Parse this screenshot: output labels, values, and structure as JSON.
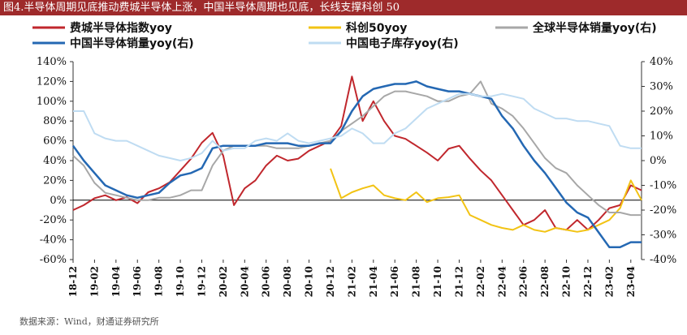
{
  "figure": {
    "title": "图4.半导体周期见底推动费城半导体上涨，中国半导体周期也见底，长线支撑科创 50",
    "source": "数据来源：Wind，财通证券研究所"
  },
  "chart_data": {
    "type": "line",
    "x_ticks": [
      "18-12",
      "19-02",
      "19-04",
      "19-06",
      "19-08",
      "19-10",
      "19-12",
      "20-02",
      "20-04",
      "20-06",
      "20-08",
      "20-10",
      "20-12",
      "21-02",
      "21-04",
      "21-06",
      "21-08",
      "21-10",
      "21-12",
      "22-02",
      "22-04",
      "22-06",
      "22-08",
      "22-10",
      "22-12",
      "23-02",
      "23-04"
    ],
    "x_range": [
      "2018-12",
      "2023-05"
    ],
    "y_left": {
      "min": -60,
      "max": 140,
      "ticks": [
        "140%",
        "120%",
        "100%",
        "80%",
        "60%",
        "40%",
        "20%",
        "0%",
        "-20%",
        "-40%",
        "-60%"
      ]
    },
    "y_right": {
      "min": -40,
      "max": 40,
      "ticks": [
        "40%",
        "30%",
        "20%",
        "10%",
        "0%",
        "-10%",
        "-20%",
        "-30%",
        "-40%"
      ]
    },
    "legend": {
      "position": "top"
    },
    "series": [
      {
        "name": "费城半导体指数yoy",
        "axis": "left",
        "color": "#c0272d",
        "width": 2,
        "points": [
          [
            "2018-12",
            -10
          ],
          [
            "2019-01",
            -5
          ],
          [
            "2019-02",
            2
          ],
          [
            "2019-03",
            5
          ],
          [
            "2019-04",
            0
          ],
          [
            "2019-05",
            3
          ],
          [
            "2019-06",
            -3
          ],
          [
            "2019-07",
            8
          ],
          [
            "2019-08",
            12
          ],
          [
            "2019-09",
            18
          ],
          [
            "2019-10",
            30
          ],
          [
            "2019-11",
            42
          ],
          [
            "2019-12",
            58
          ],
          [
            "2020-01",
            68
          ],
          [
            "2020-02",
            45
          ],
          [
            "2020-03",
            -5
          ],
          [
            "2020-04",
            12
          ],
          [
            "2020-05",
            20
          ],
          [
            "2020-06",
            35
          ],
          [
            "2020-07",
            45
          ],
          [
            "2020-08",
            40
          ],
          [
            "2020-09",
            42
          ],
          [
            "2020-10",
            50
          ],
          [
            "2020-11",
            55
          ],
          [
            "2020-12",
            60
          ],
          [
            "2021-01",
            75
          ],
          [
            "2021-02",
            125
          ],
          [
            "2021-03",
            80
          ],
          [
            "2021-04",
            100
          ],
          [
            "2021-05",
            80
          ],
          [
            "2021-06",
            65
          ],
          [
            "2021-07",
            62
          ],
          [
            "2021-08",
            55
          ],
          [
            "2021-09",
            48
          ],
          [
            "2021-10",
            40
          ],
          [
            "2021-11",
            52
          ],
          [
            "2021-12",
            55
          ],
          [
            "2022-01",
            42
          ],
          [
            "2022-02",
            30
          ],
          [
            "2022-03",
            20
          ],
          [
            "2022-04",
            5
          ],
          [
            "2022-05",
            -10
          ],
          [
            "2022-06",
            -25
          ],
          [
            "2022-07",
            -20
          ],
          [
            "2022-08",
            -10
          ],
          [
            "2022-09",
            -28
          ],
          [
            "2022-10",
            -30
          ],
          [
            "2022-11",
            -20
          ],
          [
            "2022-12",
            -30
          ],
          [
            "2023-01",
            -20
          ],
          [
            "2023-02",
            -8
          ],
          [
            "2023-03",
            -5
          ],
          [
            "2023-04",
            15
          ],
          [
            "2023-05",
            10
          ]
        ]
      },
      {
        "name": "科创50yoy",
        "axis": "left",
        "color": "#f2c314",
        "width": 2,
        "points": [
          [
            "2020-12",
            32
          ],
          [
            "2021-01",
            2
          ],
          [
            "2021-02",
            8
          ],
          [
            "2021-03",
            12
          ],
          [
            "2021-04",
            15
          ],
          [
            "2021-05",
            5
          ],
          [
            "2021-06",
            2
          ],
          [
            "2021-07",
            0
          ],
          [
            "2021-08",
            8
          ],
          [
            "2021-09",
            -2
          ],
          [
            "2021-10",
            2
          ],
          [
            "2021-11",
            3
          ],
          [
            "2021-12",
            5
          ],
          [
            "2022-01",
            -15
          ],
          [
            "2022-02",
            -20
          ],
          [
            "2022-03",
            -25
          ],
          [
            "2022-04",
            -28
          ],
          [
            "2022-05",
            -30
          ],
          [
            "2022-06",
            -25
          ],
          [
            "2022-07",
            -30
          ],
          [
            "2022-08",
            -32
          ],
          [
            "2022-09",
            -28
          ],
          [
            "2022-10",
            -30
          ],
          [
            "2022-11",
            -32
          ],
          [
            "2022-12",
            -30
          ],
          [
            "2023-01",
            -25
          ],
          [
            "2023-02",
            -20
          ],
          [
            "2023-03",
            -8
          ],
          [
            "2023-04",
            20
          ],
          [
            "2023-05",
            0
          ]
        ]
      },
      {
        "name": "全球半导体销量yoy(右)",
        "axis": "right",
        "color": "#a7a7a7",
        "width": 2,
        "points": [
          [
            "2018-12",
            2
          ],
          [
            "2019-01",
            -2
          ],
          [
            "2019-02",
            -9
          ],
          [
            "2019-03",
            -13
          ],
          [
            "2019-04",
            -14
          ],
          [
            "2019-05",
            -15
          ],
          [
            "2019-06",
            -16
          ],
          [
            "2019-07",
            -16
          ],
          [
            "2019-08",
            -15
          ],
          [
            "2019-09",
            -15
          ],
          [
            "2019-10",
            -14
          ],
          [
            "2019-11",
            -12
          ],
          [
            "2019-12",
            -12
          ],
          [
            "2020-01",
            -2
          ],
          [
            "2020-02",
            4
          ],
          [
            "2020-03",
            6
          ],
          [
            "2020-04",
            6
          ],
          [
            "2020-05",
            6
          ],
          [
            "2020-06",
            6
          ],
          [
            "2020-07",
            5
          ],
          [
            "2020-08",
            5
          ],
          [
            "2020-09",
            5
          ],
          [
            "2020-10",
            6
          ],
          [
            "2020-11",
            7
          ],
          [
            "2020-12",
            8
          ],
          [
            "2021-01",
            12
          ],
          [
            "2021-02",
            15
          ],
          [
            "2021-03",
            18
          ],
          [
            "2021-04",
            22
          ],
          [
            "2021-05",
            26
          ],
          [
            "2021-06",
            28
          ],
          [
            "2021-07",
            28
          ],
          [
            "2021-08",
            27
          ],
          [
            "2021-09",
            26
          ],
          [
            "2021-10",
            24
          ],
          [
            "2021-11",
            24
          ],
          [
            "2021-12",
            26
          ],
          [
            "2022-01",
            27
          ],
          [
            "2022-02",
            32
          ],
          [
            "2022-03",
            23
          ],
          [
            "2022-04",
            21
          ],
          [
            "2022-05",
            18
          ],
          [
            "2022-06",
            13
          ],
          [
            "2022-07",
            7
          ],
          [
            "2022-08",
            1
          ],
          [
            "2022-09",
            -3
          ],
          [
            "2022-10",
            -5
          ],
          [
            "2022-11",
            -10
          ],
          [
            "2022-12",
            -14
          ],
          [
            "2023-01",
            -18
          ],
          [
            "2023-02",
            -21
          ],
          [
            "2023-03",
            -21
          ],
          [
            "2023-04",
            -22
          ],
          [
            "2023-05",
            -22
          ]
        ]
      },
      {
        "name": "中国半导体销量yoy(右)",
        "axis": "right",
        "color": "#2468b3",
        "width": 2.5,
        "points": [
          [
            "2018-12",
            6
          ],
          [
            "2019-01",
            0
          ],
          [
            "2019-02",
            -5
          ],
          [
            "2019-03",
            -10
          ],
          [
            "2019-04",
            -12
          ],
          [
            "2019-05",
            -14
          ],
          [
            "2019-06",
            -15
          ],
          [
            "2019-07",
            -14
          ],
          [
            "2019-08",
            -13
          ],
          [
            "2019-09",
            -9
          ],
          [
            "2019-10",
            -6
          ],
          [
            "2019-11",
            -5
          ],
          [
            "2019-12",
            -3
          ],
          [
            "2020-01",
            5
          ],
          [
            "2020-02",
            6
          ],
          [
            "2020-03",
            6
          ],
          [
            "2020-04",
            6
          ],
          [
            "2020-05",
            6
          ],
          [
            "2020-06",
            7
          ],
          [
            "2020-07",
            7
          ],
          [
            "2020-08",
            7
          ],
          [
            "2020-09",
            6
          ],
          [
            "2020-10",
            6
          ],
          [
            "2020-11",
            7
          ],
          [
            "2020-12",
            7
          ],
          [
            "2021-01",
            12
          ],
          [
            "2021-02",
            20
          ],
          [
            "2021-03",
            26
          ],
          [
            "2021-04",
            29
          ],
          [
            "2021-05",
            30
          ],
          [
            "2021-06",
            31
          ],
          [
            "2021-07",
            31
          ],
          [
            "2021-08",
            32
          ],
          [
            "2021-09",
            30
          ],
          [
            "2021-10",
            29
          ],
          [
            "2021-11",
            28
          ],
          [
            "2021-12",
            28
          ],
          [
            "2022-01",
            27
          ],
          [
            "2022-02",
            26
          ],
          [
            "2022-03",
            25
          ],
          [
            "2022-04",
            18
          ],
          [
            "2022-05",
            13
          ],
          [
            "2022-06",
            6
          ],
          [
            "2022-07",
            0
          ],
          [
            "2022-08",
            -5
          ],
          [
            "2022-09",
            -11
          ],
          [
            "2022-10",
            -17
          ],
          [
            "2022-11",
            -21
          ],
          [
            "2022-12",
            -23
          ],
          [
            "2023-01",
            -29
          ],
          [
            "2023-02",
            -35
          ],
          [
            "2023-03",
            -35
          ],
          [
            "2023-04",
            -33
          ],
          [
            "2023-05",
            -33
          ]
        ]
      },
      {
        "name": "中国电子库存yoy(右)",
        "axis": "right",
        "color": "#bfdcf2",
        "width": 2,
        "points": [
          [
            "2018-12",
            20
          ],
          [
            "2019-01",
            20
          ],
          [
            "2019-02",
            11
          ],
          [
            "2019-03",
            9
          ],
          [
            "2019-04",
            8
          ],
          [
            "2019-05",
            8
          ],
          [
            "2019-06",
            6
          ],
          [
            "2019-07",
            4
          ],
          [
            "2019-08",
            2
          ],
          [
            "2019-09",
            1
          ],
          [
            "2019-10",
            0
          ],
          [
            "2019-11",
            1
          ],
          [
            "2019-12",
            3
          ],
          [
            "2020-01",
            8
          ],
          [
            "2020-02",
            4
          ],
          [
            "2020-03",
            5
          ],
          [
            "2020-04",
            5
          ],
          [
            "2020-05",
            8
          ],
          [
            "2020-06",
            9
          ],
          [
            "2020-07",
            8
          ],
          [
            "2020-08",
            11
          ],
          [
            "2020-09",
            8
          ],
          [
            "2020-10",
            7
          ],
          [
            "2020-11",
            8
          ],
          [
            "2020-12",
            9
          ],
          [
            "2021-01",
            10
          ],
          [
            "2021-02",
            13
          ],
          [
            "2021-03",
            11
          ],
          [
            "2021-04",
            7
          ],
          [
            "2021-05",
            7
          ],
          [
            "2021-06",
            11
          ],
          [
            "2021-07",
            13
          ],
          [
            "2021-08",
            17
          ],
          [
            "2021-09",
            21
          ],
          [
            "2021-10",
            23
          ],
          [
            "2021-11",
            25
          ],
          [
            "2021-12",
            27
          ],
          [
            "2022-01",
            27
          ],
          [
            "2022-02",
            26
          ],
          [
            "2022-03",
            26
          ],
          [
            "2022-04",
            27
          ],
          [
            "2022-05",
            26
          ],
          [
            "2022-06",
            25
          ],
          [
            "2022-07",
            21
          ],
          [
            "2022-08",
            19
          ],
          [
            "2022-09",
            17
          ],
          [
            "2022-10",
            17
          ],
          [
            "2022-11",
            16
          ],
          [
            "2022-12",
            16
          ],
          [
            "2023-01",
            15
          ],
          [
            "2023-02",
            14
          ],
          [
            "2023-03",
            6
          ],
          [
            "2023-04",
            5
          ],
          [
            "2023-05",
            5
          ]
        ]
      }
    ]
  }
}
